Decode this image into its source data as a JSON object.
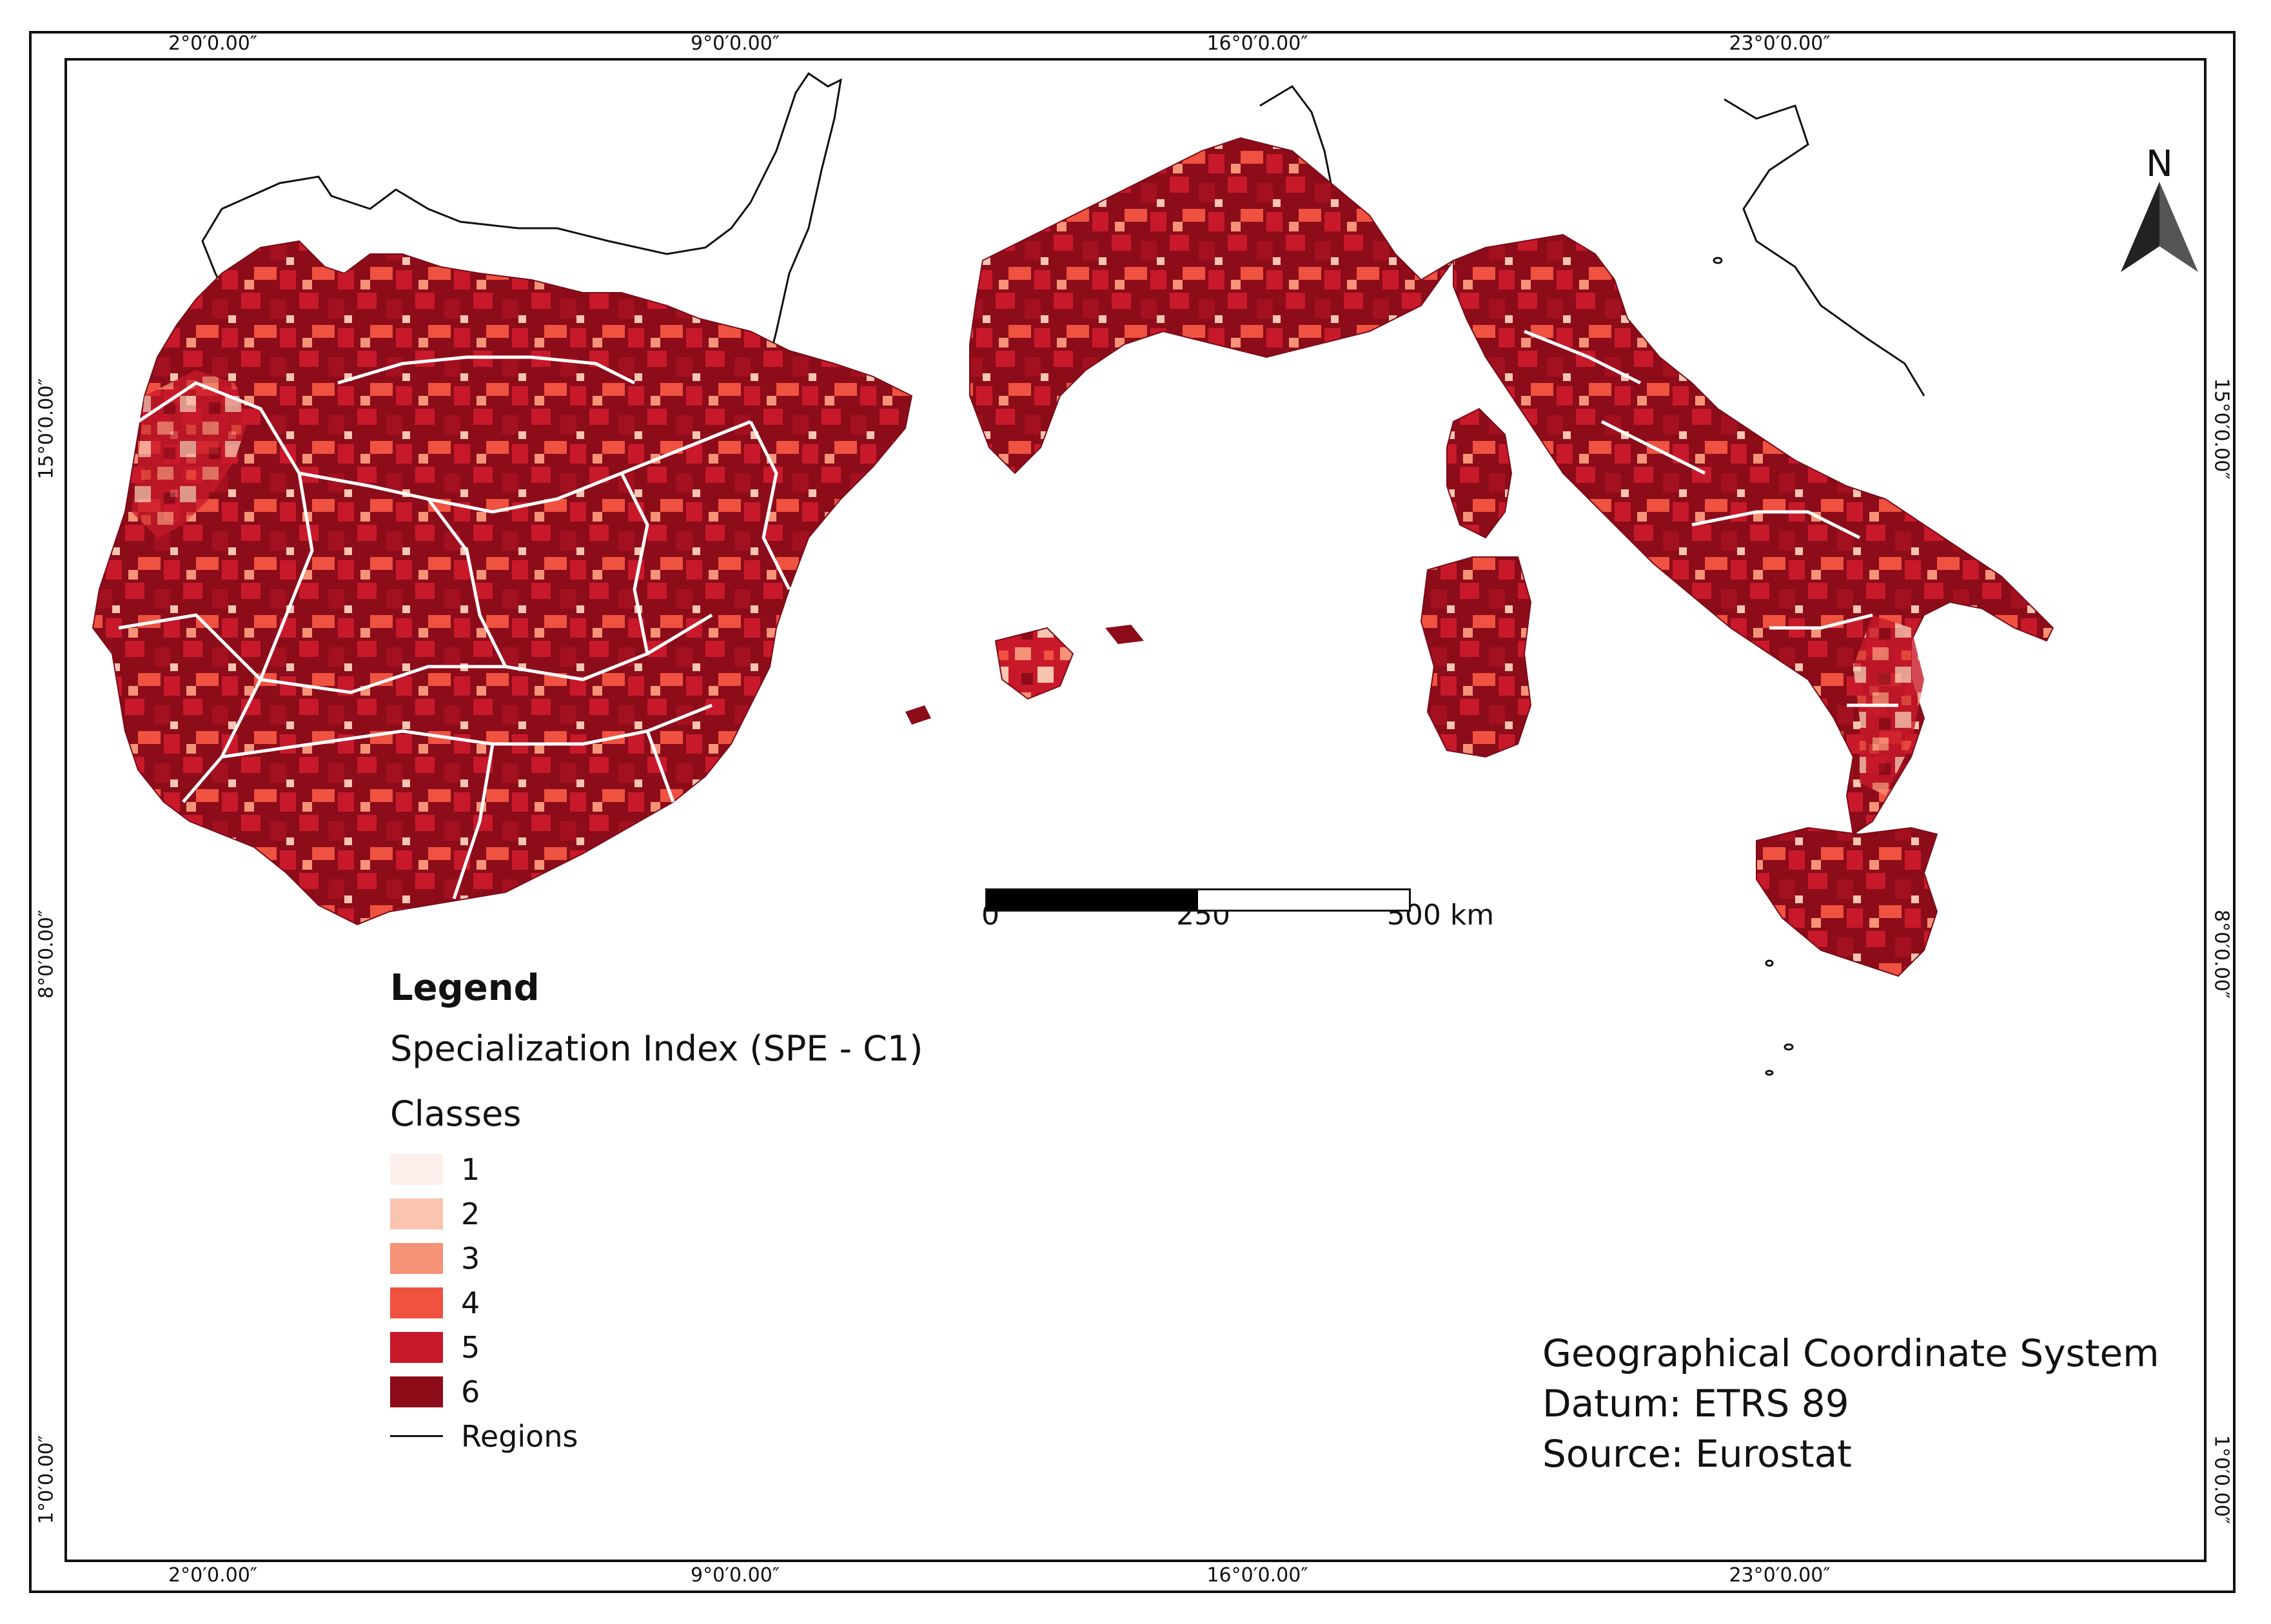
{
  "coordinates": {
    "top": [
      "2°0′0.00″",
      "9°0′0.00″",
      "16°0′0.00″",
      "23°0′0.00″"
    ],
    "bottom": [
      "2°0′0.00″",
      "9°0′0.00″",
      "16°0′0.00″",
      "23°0′0.00″"
    ],
    "left": [
      "15°0′0.00″",
      "8°0′0.00″",
      "1°0′0.00″"
    ],
    "right": [
      "15°0′0.00″",
      "8°0′0.00″",
      "1°0′0.00″"
    ]
  },
  "north_arrow": {
    "label": "N",
    "icon": "north-arrow-icon"
  },
  "scale_bar": {
    "labels": [
      "0",
      "250",
      "500 km"
    ]
  },
  "legend": {
    "title": "Legend",
    "subtitle": "Specialization Index (SPE - C1)",
    "classes_heading": "Classes",
    "classes": [
      {
        "label": "1",
        "color": "#fcf0ec"
      },
      {
        "label": "2",
        "color": "#f9c5b0"
      },
      {
        "label": "3",
        "color": "#f69277"
      },
      {
        "label": "4",
        "color": "#ef5240"
      },
      {
        "label": "5",
        "color": "#c8192a"
      },
      {
        "label": "6",
        "color": "#8c0c1a"
      }
    ],
    "regions_label": "Regions"
  },
  "info": {
    "line1": "Geographical Coordinate System",
    "line2": "Datum: ETRS 89",
    "line3": "Source: Eurostat"
  },
  "colors": {
    "land_dark": "#7a0a18",
    "region_border": "#ffffff",
    "coast_outline": "#111111"
  }
}
